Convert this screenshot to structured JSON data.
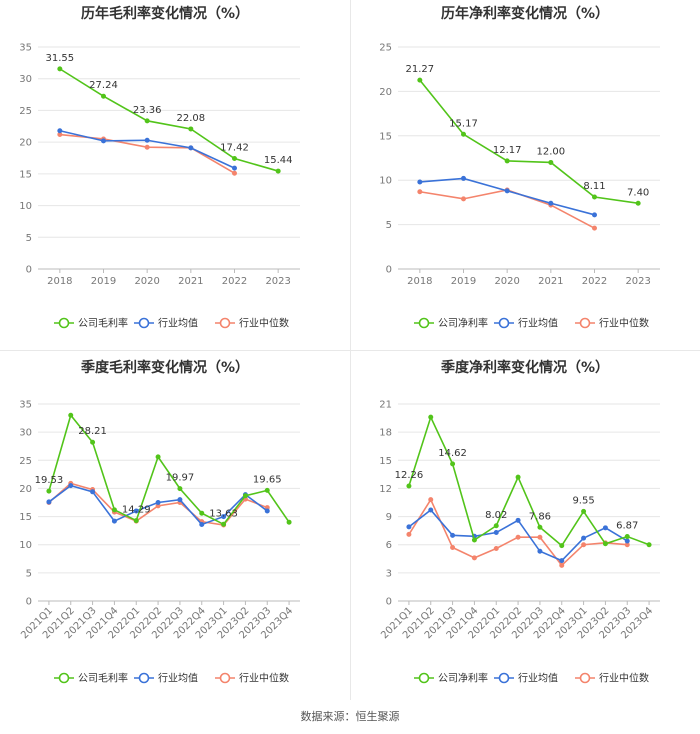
{
  "source_text": "数据来源：恒生聚源",
  "colors": {
    "company": "#52c41a",
    "industry_avg": "#3a72d8",
    "industry_median": "#f4846c",
    "grid": "#e6e6e6",
    "axis_text": "#777777"
  },
  "chart_data": [
    {
      "type": "line",
      "title": "历年毛利率变化情况（%）",
      "categories": [
        "2018",
        "2019",
        "2020",
        "2021",
        "2022",
        "2023"
      ],
      "ylim": [
        0,
        35
      ],
      "yticks": [
        0,
        5,
        10,
        15,
        20,
        25,
        30,
        35
      ],
      "grid": true,
      "legend": "bottom",
      "series": [
        {
          "name": "公司毛利率",
          "color": "#52c41a",
          "values": [
            31.55,
            27.24,
            23.36,
            22.08,
            17.42,
            15.44
          ],
          "labels": [
            "31.55",
            "27.24",
            "23.36",
            "22.08",
            "17.42",
            "15.44"
          ]
        },
        {
          "name": "行业均值",
          "color": "#3a72d8",
          "values": [
            21.8,
            20.2,
            20.3,
            19.1,
            15.9,
            null
          ]
        },
        {
          "name": "行业中位数",
          "color": "#f4846c",
          "values": [
            21.2,
            20.5,
            19.2,
            19.1,
            15.1,
            null
          ]
        }
      ]
    },
    {
      "type": "line",
      "title": "历年净利率变化情况（%）",
      "categories": [
        "2018",
        "2019",
        "2020",
        "2021",
        "2022",
        "2023"
      ],
      "ylim": [
        0,
        25
      ],
      "yticks": [
        0,
        5,
        10,
        15,
        20,
        25
      ],
      "grid": true,
      "legend": "bottom",
      "series": [
        {
          "name": "公司净利率",
          "color": "#52c41a",
          "values": [
            21.27,
            15.17,
            12.17,
            12.0,
            8.11,
            7.4
          ],
          "labels": [
            "21.27",
            "15.17",
            "12.17",
            "12.00",
            "8.11",
            "7.40"
          ]
        },
        {
          "name": "行业均值",
          "color": "#3a72d8",
          "values": [
            9.8,
            10.2,
            8.8,
            7.4,
            6.1,
            null
          ]
        },
        {
          "name": "行业中位数",
          "color": "#f4846c",
          "values": [
            8.7,
            7.9,
            8.9,
            7.2,
            4.6,
            null
          ]
        }
      ]
    },
    {
      "type": "line",
      "title": "季度毛利率变化情况（%）",
      "categories": [
        "2021Q1",
        "2021Q2",
        "2021Q3",
        "2021Q4",
        "2022Q1",
        "2022Q2",
        "2022Q3",
        "2022Q4",
        "2023Q1",
        "2023Q2",
        "2023Q3",
        "2023Q4"
      ],
      "ylim": [
        0,
        35
      ],
      "yticks": [
        0,
        5,
        10,
        15,
        20,
        25,
        30,
        35
      ],
      "grid": true,
      "legend": "bottom",
      "series": [
        {
          "name": "公司毛利率",
          "color": "#52c41a",
          "values": [
            19.53,
            33.0,
            28.21,
            16.2,
            14.29,
            25.6,
            19.97,
            15.6,
            13.63,
            18.7,
            19.65,
            14.0
          ],
          "labels": [
            "19.53",
            "",
            "28.21",
            "",
            "14.29",
            "",
            "19.97",
            "",
            "13.63",
            "",
            "19.65",
            ""
          ]
        },
        {
          "name": "行业均值",
          "color": "#3a72d8",
          "values": [
            17.6,
            20.5,
            19.4,
            14.2,
            16.0,
            17.5,
            18.0,
            13.6,
            15.0,
            18.9,
            16.0,
            null
          ]
        },
        {
          "name": "行业中位数",
          "color": "#f4846c",
          "values": [
            17.5,
            20.9,
            19.8,
            15.8,
            14.2,
            16.9,
            17.5,
            14.1,
            13.5,
            18.1,
            16.6,
            null
          ]
        }
      ]
    },
    {
      "type": "line",
      "title": "季度净利率变化情况（%）",
      "categories": [
        "2021Q1",
        "2021Q2",
        "2021Q3",
        "2021Q4",
        "2022Q1",
        "2022Q2",
        "2022Q3",
        "2022Q4",
        "2023Q1",
        "2023Q2",
        "2023Q3",
        "2023Q4"
      ],
      "ylim": [
        0,
        21
      ],
      "yticks": [
        0,
        3,
        6,
        9,
        12,
        15,
        18,
        21
      ],
      "grid": true,
      "legend": "bottom",
      "series": [
        {
          "name": "公司净利率",
          "color": "#52c41a",
          "values": [
            12.26,
            19.6,
            14.62,
            6.5,
            8.02,
            13.2,
            7.86,
            5.9,
            9.55,
            6.1,
            6.87,
            6.0
          ],
          "labels": [
            "12.26",
            "",
            "14.62",
            "",
            "8.02",
            "",
            "7.86",
            "",
            "9.55",
            "",
            "6.87",
            ""
          ]
        },
        {
          "name": "行业均值",
          "color": "#3a72d8",
          "values": [
            7.9,
            9.7,
            7.0,
            6.9,
            7.3,
            8.6,
            5.3,
            4.3,
            6.7,
            7.8,
            6.4,
            null
          ]
        },
        {
          "name": "行业中位数",
          "color": "#f4846c",
          "values": [
            7.1,
            10.8,
            5.7,
            4.6,
            5.6,
            6.8,
            6.8,
            3.8,
            6.0,
            6.2,
            6.0,
            null
          ]
        }
      ]
    }
  ]
}
